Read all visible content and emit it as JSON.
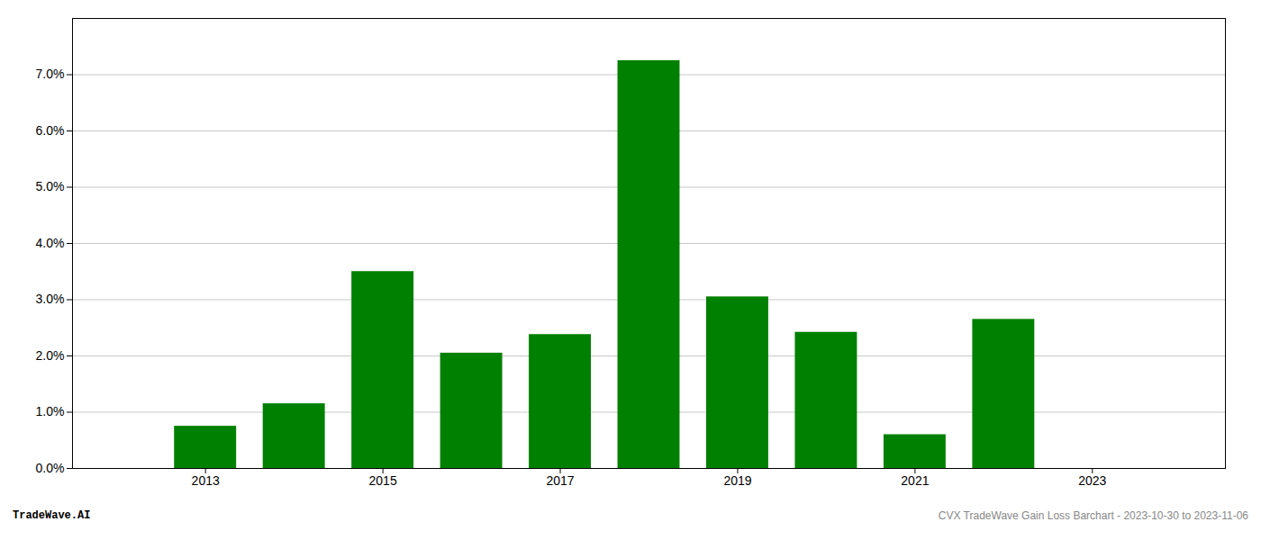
{
  "chart_data": {
    "type": "bar",
    "x": [
      2013,
      2014,
      2015,
      2016,
      2017,
      2018,
      2019,
      2020,
      2021,
      2022
    ],
    "values": [
      0.0075,
      0.0115,
      0.035,
      0.0205,
      0.0238,
      0.0725,
      0.0305,
      0.0242,
      0.006,
      0.0265
    ],
    "color": "#008000",
    "xlim": [
      2011.5,
      2024.5
    ],
    "xticks": [
      2013,
      2015,
      2017,
      2019,
      2021,
      2023
    ],
    "ylim": [
      0,
      0.08
    ],
    "yticks": [
      {
        "value": 0.0,
        "label": "0.0%"
      },
      {
        "value": 0.01,
        "label": "1.0%"
      },
      {
        "value": 0.02,
        "label": "2.0%"
      },
      {
        "value": 0.03,
        "label": "3.0%"
      },
      {
        "value": 0.04,
        "label": "4.0%"
      },
      {
        "value": 0.05,
        "label": "5.0%"
      },
      {
        "value": 0.06,
        "label": "6.0%"
      },
      {
        "value": 0.07,
        "label": "7.0%"
      }
    ],
    "grid": true,
    "annotations": [
      "TradeWave.AI",
      "CVX TradeWave Gain Loss Barchart - 2023-10-30 to 2023-11-06"
    ]
  }
}
